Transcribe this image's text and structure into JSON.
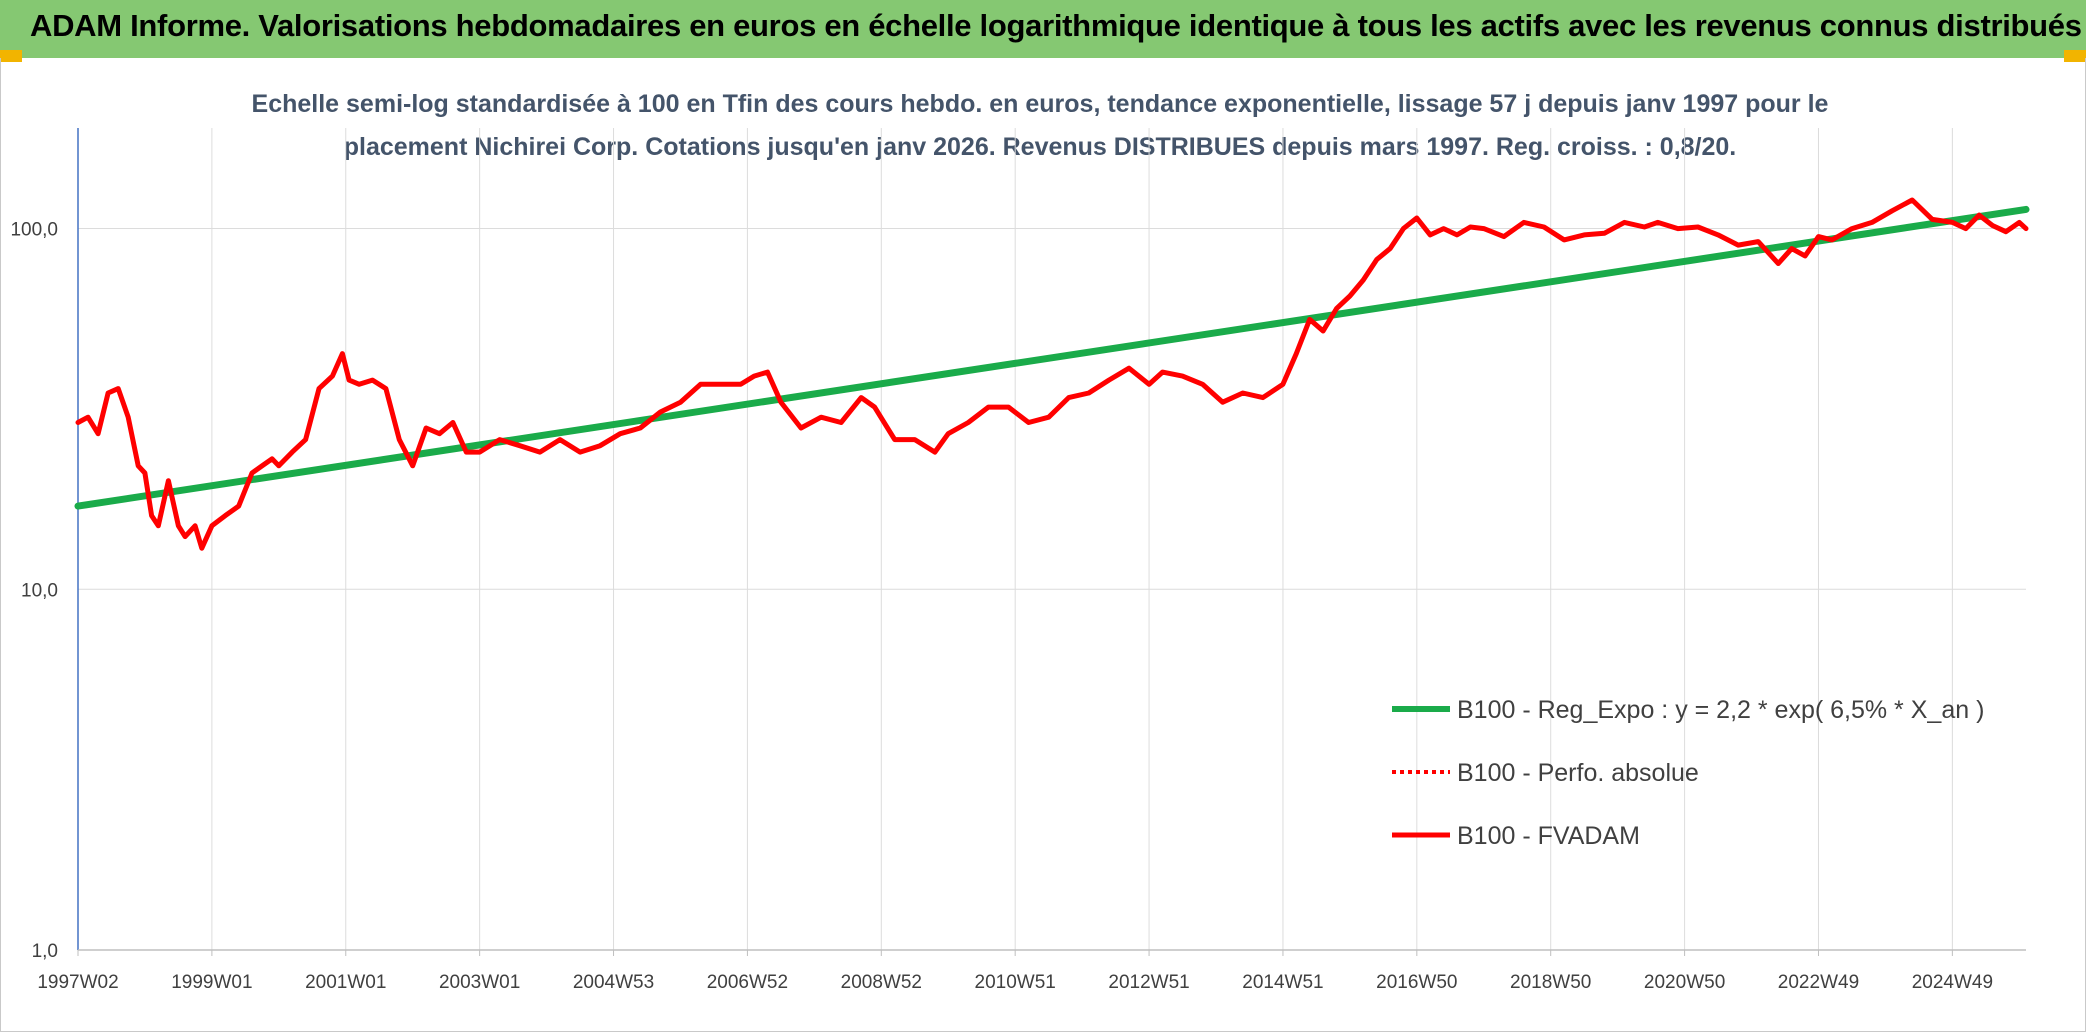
{
  "header": {
    "title": "ADAM Informe. Valorisations hebdomadaires en euros en échelle logarithmique identique à tous les actifs avec les revenus connus distribués"
  },
  "chart_data": {
    "type": "line",
    "title_line1": "Echelle semi-log standardisée à 100 en Tfin des cours hebdo. en euros, tendance exponentielle, lissage 57 j depuis janv 1997 pour le",
    "title_line2": "placement Nichirei Corp. Cotations jusqu'en janv 2026. Revenus DISTRIBUES depuis mars 1997. Reg. croiss. : 0,8/20.",
    "yscale": "log",
    "ylim": [
      1,
      190
    ],
    "xlim": [
      1997.0,
      2026.1
    ],
    "y_ticks": [
      {
        "value": 1,
        "label": "1,0"
      },
      {
        "value": 10,
        "label": "10,0"
      },
      {
        "value": 100,
        "label": "100,0"
      }
    ],
    "x_ticks": [
      {
        "value": 1997.0,
        "label": "1997W02"
      },
      {
        "value": 1999.0,
        "label": "1999W01"
      },
      {
        "value": 2001.0,
        "label": "2001W01"
      },
      {
        "value": 2003.0,
        "label": "2003W01"
      },
      {
        "value": 2005.0,
        "label": "2004W53"
      },
      {
        "value": 2007.0,
        "label": "2006W52"
      },
      {
        "value": 2009.0,
        "label": "2008W52"
      },
      {
        "value": 2011.0,
        "label": "2010W51"
      },
      {
        "value": 2013.0,
        "label": "2012W51"
      },
      {
        "value": 2015.0,
        "label": "2014W51"
      },
      {
        "value": 2017.0,
        "label": "2016W50"
      },
      {
        "value": 2019.0,
        "label": "2018W50"
      },
      {
        "value": 2021.0,
        "label": "2020W50"
      },
      {
        "value": 2023.0,
        "label": "2022W49"
      },
      {
        "value": 2025.0,
        "label": "2024W49"
      }
    ],
    "series": [
      {
        "name": "B100 - Reg_Expo : y = 2,2 * exp( 6,5% *  X_an )",
        "color": "#1aab4a",
        "style": "solid",
        "x": [
          1997.0,
          2026.1
        ],
        "y": [
          17.0,
          113.0
        ]
      },
      {
        "name": "B100 - Perfo. absolue",
        "color": "#ff0000",
        "style": "dotted",
        "x": [],
        "y": []
      },
      {
        "name": "B100 - FVADAM",
        "color": "#ff0000",
        "style": "solid",
        "x": [
          1997.0,
          1997.15,
          1997.3,
          1997.45,
          1997.6,
          1997.75,
          1997.9,
          1998.0,
          1998.1,
          1998.2,
          1998.35,
          1998.5,
          1998.6,
          1998.75,
          1998.85,
          1999.0,
          1999.2,
          1999.4,
          1999.6,
          1999.75,
          1999.9,
          2000.0,
          2000.2,
          2000.4,
          2000.6,
          2000.8,
          2000.95,
          2001.05,
          2001.2,
          2001.4,
          2001.6,
          2001.8,
          2002.0,
          2002.2,
          2002.4,
          2002.6,
          2002.8,
          2003.0,
          2003.3,
          2003.6,
          2003.9,
          2004.2,
          2004.5,
          2004.8,
          2005.1,
          2005.4,
          2005.7,
          2006.0,
          2006.3,
          2006.6,
          2006.9,
          2007.1,
          2007.3,
          2007.5,
          2007.8,
          2008.1,
          2008.4,
          2008.7,
          2008.9,
          2009.2,
          2009.5,
          2009.8,
          2010.0,
          2010.3,
          2010.6,
          2010.9,
          2011.2,
          2011.5,
          2011.8,
          2012.1,
          2012.4,
          2012.7,
          2013.0,
          2013.2,
          2013.5,
          2013.8,
          2014.1,
          2014.4,
          2014.7,
          2015.0,
          2015.2,
          2015.4,
          2015.6,
          2015.8,
          2016.0,
          2016.2,
          2016.4,
          2016.6,
          2016.8,
          2017.0,
          2017.2,
          2017.4,
          2017.6,
          2017.8,
          2018.0,
          2018.3,
          2018.6,
          2018.9,
          2019.2,
          2019.5,
          2019.8,
          2020.1,
          2020.4,
          2020.6,
          2020.9,
          2021.2,
          2021.5,
          2021.8,
          2022.1,
          2022.4,
          2022.6,
          2022.8,
          2023.0,
          2023.2,
          2023.5,
          2023.8,
          2024.1,
          2024.4,
          2024.7,
          2025.0,
          2025.2,
          2025.4,
          2025.6,
          2025.8,
          2026.0,
          2026.1
        ],
        "y": [
          29,
          30,
          27,
          35,
          36,
          30,
          22,
          21,
          16,
          15,
          20,
          15,
          14,
          15,
          13,
          15,
          16,
          17,
          21,
          22,
          23,
          22,
          24,
          26,
          36,
          39,
          45,
          38,
          37,
          38,
          36,
          26,
          22,
          28,
          27,
          29,
          24,
          24,
          26,
          25,
          24,
          26,
          24,
          25,
          27,
          28,
          31,
          33,
          37,
          37,
          37,
          39,
          40,
          33,
          28,
          30,
          29,
          34,
          32,
          26,
          26,
          24,
          27,
          29,
          32,
          32,
          29,
          30,
          34,
          35,
          38,
          41,
          37,
          40,
          39,
          37,
          33,
          35,
          34,
          37,
          45,
          56,
          52,
          60,
          65,
          72,
          82,
          88,
          100,
          107,
          96,
          100,
          96,
          101,
          100,
          95,
          104,
          101,
          93,
          96,
          97,
          104,
          101,
          104,
          100,
          101,
          96,
          90,
          92,
          80,
          88,
          84,
          95,
          93,
          100,
          104,
          112,
          120,
          106,
          104,
          100,
          109,
          102,
          98,
          104,
          100
        ]
      }
    ]
  }
}
